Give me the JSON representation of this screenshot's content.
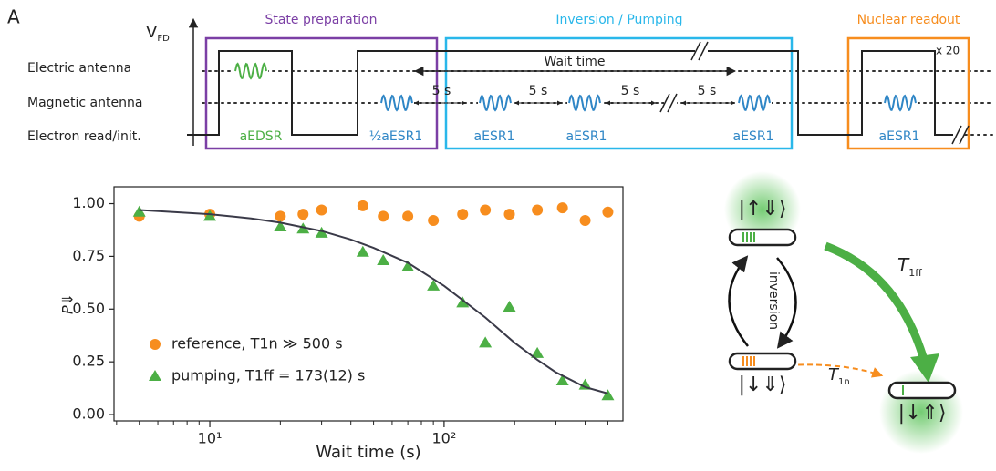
{
  "panel_label": "A",
  "pulse_diagram": {
    "axis_label": {
      "main": "V",
      "sub": "FD"
    },
    "rows": [
      "Electric antenna",
      "Magnetic antenna",
      "Electron read/init."
    ],
    "sections": [
      "State preparation",
      "Inversion / Pumping",
      "Nuclear readout"
    ],
    "wait_label": "Wait time",
    "repeat": "x 20",
    "intervals": [
      "5 s",
      "5 s",
      "5 s",
      "5 s"
    ],
    "pulses": [
      "aEDSR",
      "½aESR1",
      "aESR1",
      "aESR1",
      "aESR1",
      "aESR1"
    ]
  },
  "level_diagram": {
    "states": [
      "|↑⇓⟩",
      "|↓⇓⟩",
      "|↓⇑⟩"
    ],
    "inversion": "inversion",
    "rates": [
      {
        "main": "T",
        "sub": "1ff"
      },
      {
        "main": "T",
        "sub": "1n"
      }
    ]
  },
  "chart_data": {
    "type": "scatter",
    "xlabel": "Wait time (s)",
    "ylabel": "P⇓",
    "xscale": "log",
    "xlim": [
      3.9,
      580
    ],
    "ylim": [
      -0.03,
      1.08
    ],
    "xticks": [
      {
        "value": 10,
        "label": "10¹"
      },
      {
        "value": 100,
        "label": "10²"
      }
    ],
    "xminorticks": [
      4,
      5,
      6,
      7,
      8,
      9,
      20,
      30,
      40,
      50,
      60,
      70,
      80,
      90,
      200,
      300,
      400,
      500
    ],
    "yticks": [
      {
        "value": 0,
        "label": "0.00"
      },
      {
        "value": 0.25,
        "label": "0.25"
      },
      {
        "value": 0.5,
        "label": "0.50"
      },
      {
        "value": 0.75,
        "label": "0.75"
      },
      {
        "value": 1,
        "label": "1.00"
      }
    ],
    "legend": "lower left",
    "series": [
      {
        "name": "reference, T1n ≫ 500 s",
        "color": "#f78d1e",
        "marker": "circle",
        "x": [
          5,
          10,
          20,
          25,
          30,
          45,
          55,
          70,
          90,
          120,
          150,
          190,
          250,
          320,
          400,
          500
        ],
        "values": [
          0.94,
          0.95,
          0.94,
          0.95,
          0.97,
          0.99,
          0.94,
          0.94,
          0.92,
          0.95,
          0.97,
          0.95,
          0.97,
          0.98,
          0.92,
          0.96
        ]
      },
      {
        "name": "pumping, T1ff = 173(12) s",
        "color": "#4caf45",
        "marker": "triangle",
        "x": [
          5,
          10,
          20,
          25,
          30,
          45,
          55,
          70,
          90,
          120,
          150,
          190,
          250,
          320,
          400,
          500
        ],
        "values": [
          0.96,
          0.94,
          0.89,
          0.88,
          0.86,
          0.77,
          0.73,
          0.7,
          0.61,
          0.53,
          0.34,
          0.51,
          0.29,
          0.16,
          0.14,
          0.09
        ]
      },
      {
        "color": "#3a3a48",
        "marker": "line",
        "x": [
          5,
          7,
          10,
          15,
          20,
          30,
          40,
          50,
          70,
          100,
          150,
          200,
          250,
          300,
          400,
          500
        ],
        "values": [
          0.97,
          0.96,
          0.95,
          0.93,
          0.91,
          0.87,
          0.83,
          0.79,
          0.72,
          0.61,
          0.46,
          0.34,
          0.26,
          0.2,
          0.13,
          0.1
        ]
      }
    ]
  }
}
